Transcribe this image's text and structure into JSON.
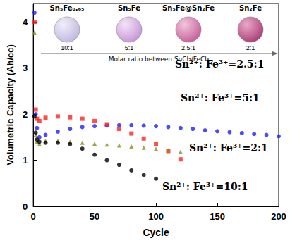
{
  "chart_data": {
    "type": "scatter",
    "x_label": "Cycle",
    "y_label": "Volumetric Capacity (Ah/cc)",
    "xlim": [
      0,
      200
    ],
    "xticks": [
      0,
      50,
      100,
      150,
      200
    ],
    "ylim": [
      0,
      4.4
    ],
    "yticks": [
      0,
      1,
      2,
      3,
      4
    ],
    "grid": false,
    "series": [
      {
        "name": "Sn²⁺: Fe³⁺=2.5:1",
        "color": "#1f1fff",
        "marker": "circle",
        "x": [
          1,
          2,
          3,
          5,
          10,
          20,
          30,
          40,
          50,
          60,
          70,
          80,
          90,
          100,
          110,
          120,
          130,
          140,
          150,
          160,
          170,
          180,
          190,
          200
        ],
        "values": [
          4.2,
          2.0,
          1.7,
          1.5,
          1.55,
          1.62,
          1.68,
          1.72,
          1.74,
          1.75,
          1.76,
          1.76,
          1.75,
          1.74,
          1.72,
          1.7,
          1.68,
          1.65,
          1.63,
          1.61,
          1.59,
          1.57,
          1.55,
          1.52
        ]
      },
      {
        "name": "Sn²⁺: Fe³⁺=5:1",
        "color": "#ff1f1f",
        "marker": "square",
        "x": [
          1,
          2,
          3,
          5,
          10,
          20,
          30,
          40,
          50,
          60,
          70,
          80,
          90,
          100,
          110,
          120
        ],
        "values": [
          4.0,
          2.1,
          1.9,
          1.85,
          1.92,
          1.95,
          1.93,
          1.9,
          1.85,
          1.78,
          1.68,
          1.58,
          1.47,
          1.35,
          1.2,
          1.02
        ]
      },
      {
        "name": "Sn²⁺: Fe³⁺=2:1",
        "color": "#8c8c1a",
        "marker": "triangle",
        "x": [
          1,
          2,
          3,
          5,
          10,
          20,
          30,
          40,
          50,
          60,
          70,
          80,
          90,
          100,
          110,
          120
        ],
        "values": [
          3.77,
          1.55,
          1.4,
          1.35,
          1.42,
          1.42,
          1.4,
          1.38,
          1.36,
          1.34,
          1.32,
          1.3,
          1.27,
          1.25,
          1.22,
          1.18
        ]
      },
      {
        "name": "Sn²⁺: Fe³⁺=10:1",
        "color": "#000000",
        "marker": "circle",
        "x": [
          1,
          2,
          3,
          5,
          10,
          20,
          30,
          40,
          50,
          60,
          70,
          80,
          90,
          100
        ],
        "values": [
          1.95,
          1.6,
          1.45,
          1.4,
          1.38,
          1.38,
          1.35,
          1.25,
          1.12,
          1.0,
          0.9,
          0.78,
          0.68,
          0.6
        ]
      }
    ],
    "annotations": {
      "phases": [
        "Sn₅Fe₀.₆₅",
        "Sn₅Fe",
        "Sn₅Fe@Sn₂Fe",
        "Sn₂Fe"
      ],
      "ratios": [
        "10:1",
        "5:1",
        "2.5:1",
        "2:1"
      ],
      "arrow_label": "Molar ratio between SnCl₂/FeCl₃"
    }
  }
}
